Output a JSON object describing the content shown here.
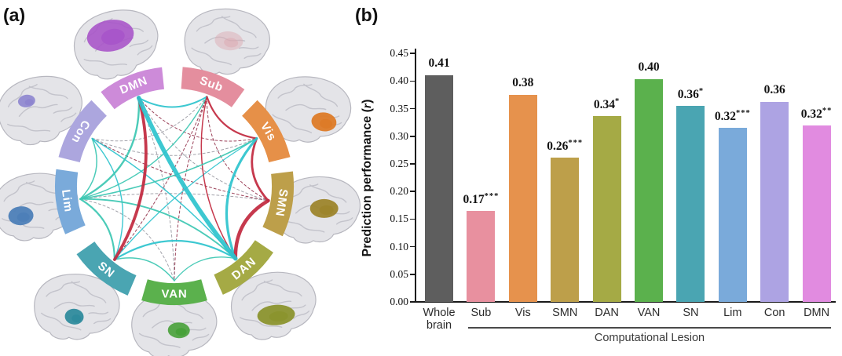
{
  "panels": {
    "a": "(a)",
    "b": "(b)"
  },
  "connectome": {
    "networks": [
      {
        "id": "DMN",
        "label": "DMN",
        "angle": 112,
        "color": "#cd8bd9",
        "patch": "#a855c9"
      },
      {
        "id": "Sub",
        "label": "Sub",
        "angle": 70,
        "color": "#e48e9e",
        "patch": "#dba7b0"
      },
      {
        "id": "Vis",
        "label": "Vis",
        "angle": 30,
        "color": "#e69048",
        "patch": "#dd7b28"
      },
      {
        "id": "SMN",
        "label": "SMN",
        "angle": -9,
        "color": "#bd9f4a",
        "patch": "#9d852c"
      },
      {
        "id": "DAN",
        "label": "DAN",
        "angle": -50,
        "color": "#a5aa45",
        "patch": "#8b942e"
      },
      {
        "id": "VAN",
        "label": "VAN",
        "angle": -90,
        "color": "#5bb14d",
        "patch": "#47a038"
      },
      {
        "id": "SN",
        "label": "SN",
        "angle": -129,
        "color": "#4aa5b2",
        "patch": "#2f8b9d"
      },
      {
        "id": "Lim",
        "label": "Lim",
        "angle": 188,
        "color": "#7aaada",
        "patch": "#4d7fb8"
      },
      {
        "id": "Con",
        "label": "Con",
        "angle": 150,
        "color": "#aca6de",
        "patch": "#8d85cf"
      }
    ],
    "edge_colors": {
      "cyan": "#2cc3cd",
      "teal": "#3cc7b2",
      "red": "#c1283e",
      "darkred": "#93314b",
      "gray": "#9b9ba4"
    },
    "edges": [
      {
        "a": "DMN",
        "b": "DAN",
        "c": "cyan",
        "w": 5.5
      },
      {
        "a": "DMN",
        "b": "SN",
        "c": "red",
        "w": 3.8
      },
      {
        "a": "SMN",
        "b": "DAN",
        "c": "red",
        "w": 4.5
      },
      {
        "a": "Vis",
        "b": "SMN",
        "c": "red",
        "w": 2.8
      },
      {
        "a": "Sub",
        "b": "Vis",
        "c": "red",
        "w": 2.2
      },
      {
        "a": "Vis",
        "b": "DAN",
        "c": "cyan",
        "w": 3.2
      },
      {
        "a": "DMN",
        "b": "Sub",
        "c": "cyan",
        "w": 2.0
      },
      {
        "a": "DMN",
        "b": "Lim",
        "c": "teal",
        "w": 2.4
      },
      {
        "a": "Lim",
        "b": "SN",
        "c": "teal",
        "w": 2.2
      },
      {
        "a": "Lim",
        "b": "DAN",
        "c": "teal",
        "w": 1.9
      },
      {
        "a": "Lim",
        "b": "Vis",
        "c": "teal",
        "w": 1.6
      },
      {
        "a": "Lim",
        "b": "Con",
        "c": "teal",
        "w": 1.5
      },
      {
        "a": "Lim",
        "b": "Sub",
        "c": "teal",
        "w": 1.4
      },
      {
        "a": "SN",
        "b": "DAN",
        "c": "cyan",
        "w": 2.2
      },
      {
        "a": "SN",
        "b": "VAN",
        "c": "teal",
        "w": 1.5
      },
      {
        "a": "SN",
        "b": "Con",
        "c": "cyan",
        "w": 1.4
      },
      {
        "a": "Con",
        "b": "DAN",
        "c": "cyan",
        "w": 1.5
      },
      {
        "a": "VAN",
        "b": "DAN",
        "c": "teal",
        "w": 1.3
      },
      {
        "a": "Sub",
        "b": "DAN",
        "c": "red",
        "w": 1.5
      },
      {
        "a": "SN",
        "b": "Vis",
        "c": "cyan",
        "w": 1.3
      },
      {
        "a": "Sub",
        "b": "SMN",
        "c": "darkred",
        "w": 1,
        "d": 1
      },
      {
        "a": "Sub",
        "b": "VAN",
        "c": "darkred",
        "w": 1,
        "d": 1
      },
      {
        "a": "Sub",
        "b": "SN",
        "c": "darkred",
        "w": 1,
        "d": 1
      },
      {
        "a": "DMN",
        "b": "Vis",
        "c": "darkred",
        "w": 1,
        "d": 1
      },
      {
        "a": "DMN",
        "b": "SMN",
        "c": "gray",
        "w": 1,
        "d": 1
      },
      {
        "a": "DMN",
        "b": "VAN",
        "c": "gray",
        "w": 1,
        "d": 1
      },
      {
        "a": "Con",
        "b": "Vis",
        "c": "gray",
        "w": 1,
        "d": 1
      },
      {
        "a": "Con",
        "b": "SMN",
        "c": "darkred",
        "w": 1,
        "d": 1
      },
      {
        "a": "Lim",
        "b": "SMN",
        "c": "gray",
        "w": 1,
        "d": 1
      },
      {
        "a": "Con",
        "b": "Sub",
        "c": "gray",
        "w": 1,
        "d": 1
      },
      {
        "a": "Lim",
        "b": "VAN",
        "c": "gray",
        "w": 1,
        "d": 1
      }
    ]
  },
  "chart_data": {
    "type": "bar",
    "title": "",
    "ylabel": "Prediction performance (r)",
    "ylabel_main": "Prediction performance",
    "ylabel_var": "r",
    "xlabel": "",
    "group_label": "Computational Lesion",
    "ylim": [
      0,
      0.45
    ],
    "yticks": [
      "0.00",
      "0.05",
      "0.10",
      "0.15",
      "0.20",
      "0.25",
      "0.30",
      "0.35",
      "0.40",
      "0.45"
    ],
    "grid": false,
    "legend": "none",
    "categories": [
      "Whole brain",
      "Sub",
      "Vis",
      "SMN",
      "DAN",
      "VAN",
      "SN",
      "Lim",
      "Con",
      "DMN"
    ],
    "bars": [
      {
        "category": "Whole brain",
        "label": "0.41",
        "sig": "",
        "value": 0.41,
        "color": "#5e5e5e"
      },
      {
        "category": "Sub",
        "label": "0.17",
        "sig": "***",
        "value": 0.165,
        "color": "#e8909f"
      },
      {
        "category": "Vis",
        "label": "0.38",
        "sig": "",
        "value": 0.375,
        "color": "#e6924d"
      },
      {
        "category": "SMN",
        "label": "0.26",
        "sig": "***",
        "value": 0.262,
        "color": "#bd9f4a"
      },
      {
        "category": "DAN",
        "label": "0.34",
        "sig": "*",
        "value": 0.336,
        "color": "#a5aa45"
      },
      {
        "category": "VAN",
        "label": "0.40",
        "sig": "",
        "value": 0.404,
        "color": "#5bb14d"
      },
      {
        "category": "SN",
        "label": "0.36",
        "sig": "*",
        "value": 0.355,
        "color": "#4aa5b2"
      },
      {
        "category": "Lim",
        "label": "0.32",
        "sig": "***",
        "value": 0.315,
        "color": "#7aaada"
      },
      {
        "category": "Con",
        "label": "0.36",
        "sig": "",
        "value": 0.362,
        "color": "#ada3e3"
      },
      {
        "category": "DMN",
        "label": "0.32",
        "sig": "**",
        "value": 0.32,
        "color": "#e18be0"
      }
    ]
  }
}
